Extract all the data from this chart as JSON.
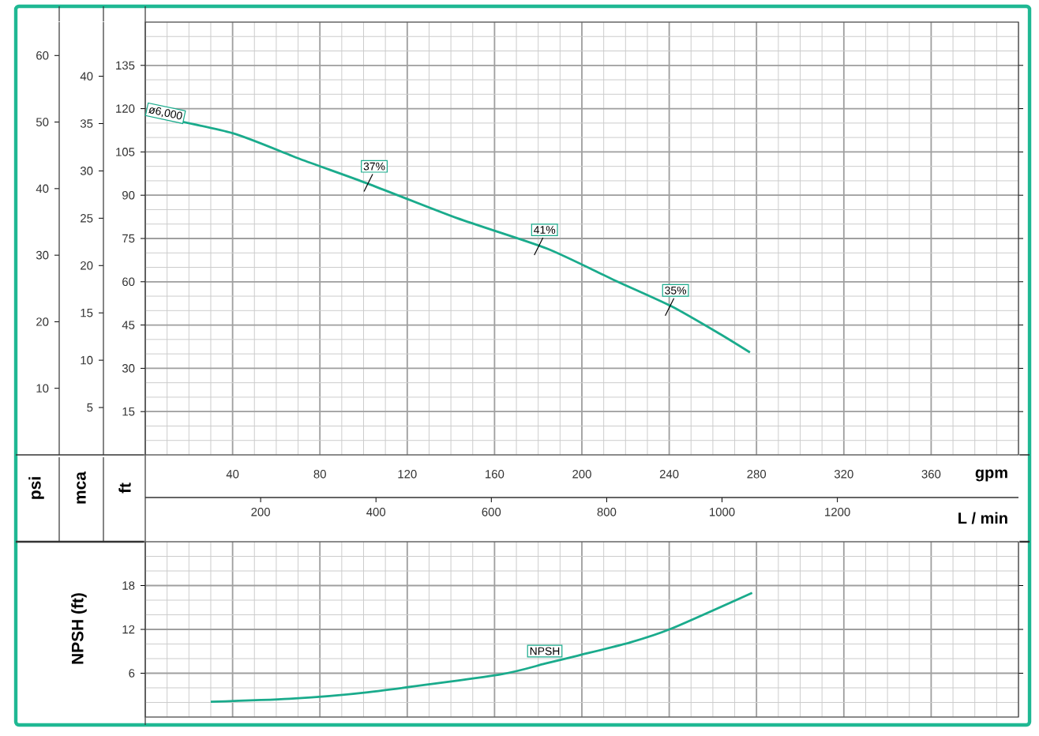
{
  "chart_data": [
    {
      "type": "line",
      "xlabel": "gpm",
      "ylabel": "ft",
      "y2label": "mca",
      "y3label": "psi",
      "x2label": "L / min",
      "xlim": [
        0,
        400
      ],
      "xticks": [
        40,
        80,
        120,
        160,
        200,
        240,
        280,
        320,
        360
      ],
      "ylim": [
        0,
        150
      ],
      "yticks": [
        15,
        30,
        45,
        60,
        75,
        90,
        105,
        120,
        135
      ],
      "y2lim": [
        0,
        45.72
      ],
      "y2ticks": [
        5,
        10,
        15,
        20,
        25,
        30,
        35,
        40
      ],
      "y3lim": [
        0,
        65.02
      ],
      "y3ticks": [
        10,
        20,
        30,
        40,
        50,
        60
      ],
      "x2lim": [
        0,
        1514
      ],
      "x2ticks": [
        200,
        400,
        600,
        800,
        1000,
        1200
      ],
      "grid": true,
      "series": [
        {
          "name": "ø6,000",
          "color": "#1aab8c",
          "x": [
            0,
            40,
            71,
            102,
            143,
            184,
            215,
            241,
            263,
            277
          ],
          "values": [
            118,
            111.5,
            102.5,
            94,
            82,
            71.5,
            60.5,
            51.5,
            42,
            35.5
          ]
        }
      ],
      "annotations": [
        {
          "text": "37%",
          "x": 102,
          "y": 94
        },
        {
          "text": "41%",
          "x": 180,
          "y": 72
        },
        {
          "text": "35%",
          "x": 240,
          "y": 51
        }
      ]
    },
    {
      "type": "line",
      "ylabel": "NPSH (ft)",
      "xlim": [
        0,
        400
      ],
      "xticks": [
        40,
        80,
        120,
        160,
        200,
        240,
        280,
        320,
        360
      ],
      "ylim": [
        0,
        24
      ],
      "yticks": [
        6,
        12,
        18
      ],
      "tick_labels": "y",
      "grid": true,
      "series": [
        {
          "name": "NPSH",
          "color": "#1aab8c",
          "x": [
            30,
            66,
            102,
            162,
            183,
            198,
            222,
            241,
            278
          ],
          "values": [
            2.1,
            2.5,
            3.4,
            5.8,
            7.3,
            8.4,
            10.2,
            12.1,
            17
          ]
        }
      ]
    }
  ]
}
